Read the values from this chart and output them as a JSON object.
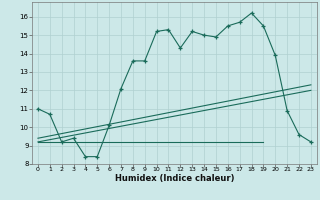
{
  "xlabel": "Humidex (Indice chaleur)",
  "bg_color": "#cce8e8",
  "grid_color": "#b0d0d0",
  "line_color": "#1a6b5a",
  "xlim": [
    -0.5,
    23.5
  ],
  "ylim": [
    8,
    16.8
  ],
  "yticks": [
    8,
    9,
    10,
    11,
    12,
    13,
    14,
    15,
    16
  ],
  "xticks": [
    0,
    1,
    2,
    3,
    4,
    5,
    6,
    7,
    8,
    9,
    10,
    11,
    12,
    13,
    14,
    15,
    16,
    17,
    18,
    19,
    20,
    21,
    22,
    23
  ],
  "series": [
    {
      "x": [
        0,
        1,
        2,
        3,
        4,
        5,
        6,
        7,
        8,
        9,
        10,
        11,
        12,
        13,
        14,
        15,
        16,
        17,
        18,
        19,
        20,
        21,
        22,
        23
      ],
      "y": [
        11.0,
        10.7,
        9.2,
        9.4,
        8.4,
        8.4,
        10.1,
        12.1,
        13.6,
        13.6,
        15.2,
        15.3,
        14.3,
        15.2,
        15.0,
        14.9,
        15.5,
        15.7,
        16.2,
        15.5,
        13.9,
        10.9,
        9.6,
        9.2
      ],
      "marker": true
    },
    {
      "x": [
        0,
        19
      ],
      "y": [
        9.2,
        9.2
      ],
      "marker": false
    },
    {
      "x": [
        0,
        23
      ],
      "y": [
        9.2,
        12.0
      ],
      "marker": false
    },
    {
      "x": [
        0,
        23
      ],
      "y": [
        9.4,
        12.3
      ],
      "marker": false
    }
  ]
}
